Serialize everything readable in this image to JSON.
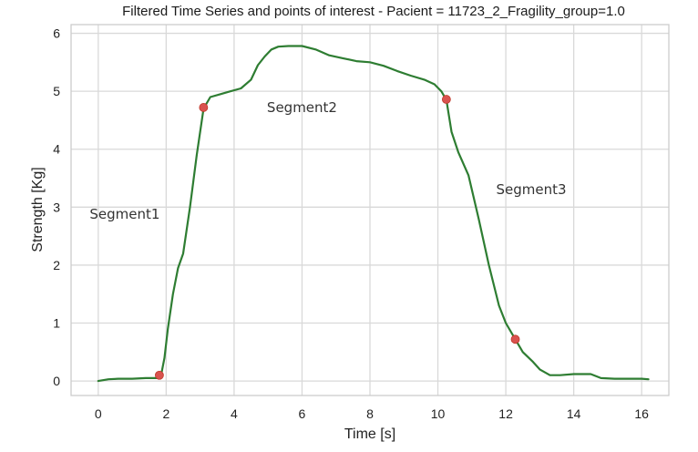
{
  "chart_data": {
    "type": "line",
    "title": "Filtered Time Series and points of interest - Pacient = 11723_2_Fragility_group=1.0",
    "xlabel": "Time [s]",
    "ylabel": "Strength [Kg]",
    "xlim": [
      -0.8,
      16.8
    ],
    "ylim": [
      -0.25,
      6.15
    ],
    "xticks": [
      "0",
      "2",
      "4",
      "6",
      "8",
      "10",
      "12",
      "14",
      "16"
    ],
    "yticks": [
      "0",
      "1",
      "2",
      "3",
      "4",
      "5",
      "6"
    ],
    "grid": true,
    "line_color": "#2e7d32",
    "marker_color": "#d9534f",
    "series": [
      {
        "x": [
          0,
          0.3,
          0.6,
          1.0,
          1.4,
          1.75,
          1.85,
          1.95,
          2.05,
          2.2,
          2.35,
          2.5,
          2.7,
          2.9,
          3.1,
          3.3,
          3.6,
          3.9,
          4.2,
          4.5,
          4.7,
          4.9,
          5.1,
          5.3,
          5.6,
          6.0,
          6.4,
          6.8,
          7.2,
          7.6,
          8.0,
          8.4,
          8.8,
          9.2,
          9.6,
          9.9,
          10.1,
          10.25,
          10.4,
          10.6,
          10.9,
          11.2,
          11.5,
          11.8,
          12.0,
          12.28,
          12.5,
          12.8,
          13.0,
          13.3,
          13.6,
          14.0,
          14.5,
          14.8,
          15.2,
          15.6,
          16.0,
          16.2
        ],
        "y": [
          0.0,
          0.03,
          0.04,
          0.04,
          0.05,
          0.05,
          0.1,
          0.4,
          0.9,
          1.5,
          1.95,
          2.2,
          3.0,
          3.9,
          4.7,
          4.9,
          4.95,
          5.0,
          5.05,
          5.2,
          5.45,
          5.6,
          5.72,
          5.77,
          5.78,
          5.78,
          5.72,
          5.62,
          5.57,
          5.52,
          5.5,
          5.44,
          5.35,
          5.27,
          5.2,
          5.12,
          5.0,
          4.85,
          4.3,
          3.95,
          3.55,
          2.8,
          2.0,
          1.3,
          1.0,
          0.72,
          0.5,
          0.33,
          0.2,
          0.1,
          0.1,
          0.12,
          0.12,
          0.05,
          0.04,
          0.04,
          0.04,
          0.03
        ]
      }
    ],
    "points_of_interest": [
      {
        "x": 1.8,
        "y": 0.1
      },
      {
        "x": 3.1,
        "y": 4.72
      },
      {
        "x": 10.25,
        "y": 4.86
      },
      {
        "x": 12.28,
        "y": 0.72
      }
    ],
    "annotations": [
      {
        "text": "Segment1",
        "x": 0.78,
        "y": 2.88
      },
      {
        "text": "Segment2",
        "x": 6.0,
        "y": 4.72
      },
      {
        "text": "Segment3",
        "x": 12.75,
        "y": 3.3
      }
    ]
  }
}
